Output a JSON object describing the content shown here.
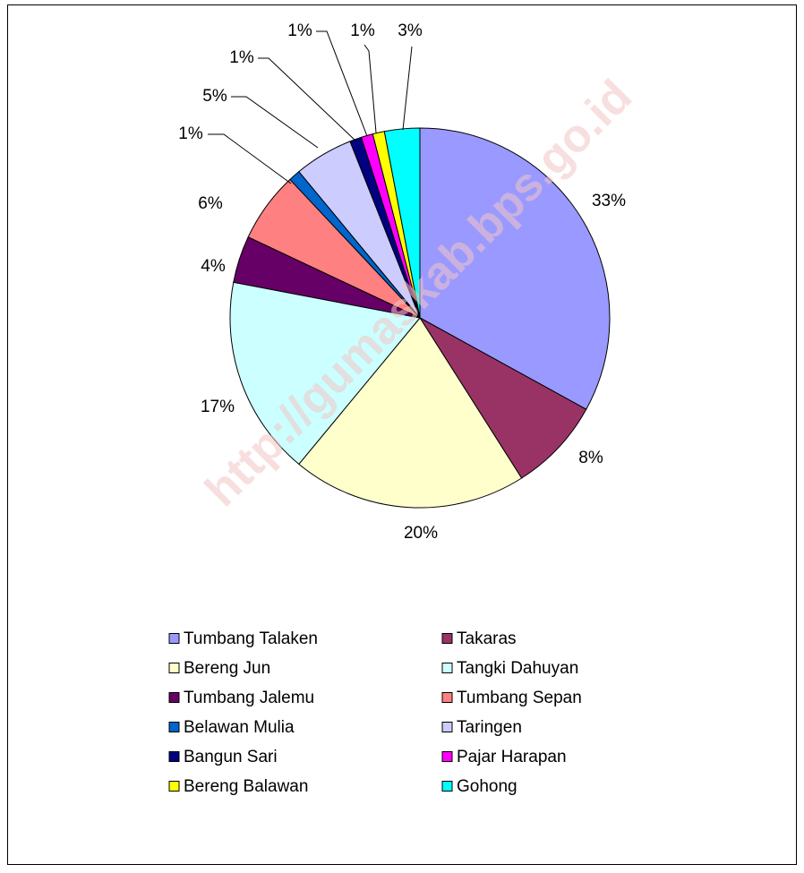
{
  "chart_data": {
    "type": "pie",
    "watermark": "http://gumaskab.bps.go.id",
    "categories": [
      "Tumbang Talaken",
      "Takaras",
      "Bereng Jun",
      "Tangki Dahuyan",
      "Tumbang Jalemu",
      "Tumbang Sepan",
      "Belawan Mulia",
      "Taringen",
      "Bangun Sari",
      "Pajar Harapan",
      "Bereng Balawan",
      "Gohong"
    ],
    "values": [
      33,
      8,
      20,
      17,
      4,
      6,
      1,
      5,
      1,
      1,
      1,
      3
    ],
    "value_labels": [
      "33%",
      "8%",
      "20%",
      "17%",
      "4%",
      "6%",
      "1%",
      "5%",
      "1%",
      "1%",
      "1%",
      "3%"
    ],
    "colors": [
      "#9999ff",
      "#993366",
      "#ffffcc",
      "#ccffff",
      "#660066",
      "#ff8080",
      "#0066cc",
      "#ccccff",
      "#000080",
      "#ff00ff",
      "#ffff00",
      "#00ffff"
    ],
    "legend": "bottom"
  }
}
